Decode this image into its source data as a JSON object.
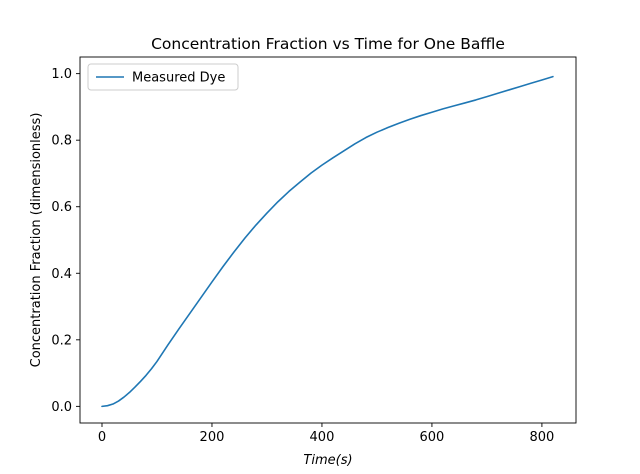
{
  "chart_data": {
    "type": "line",
    "title": "Concentration Fraction vs Time for One Baffle",
    "xlabel": "Time(s)",
    "ylabel": "Concentration Fraction (dimensionless)",
    "xlim": [
      -40,
      862
    ],
    "ylim": [
      -0.05,
      1.05
    ],
    "xticks": [
      0,
      200,
      400,
      600,
      800
    ],
    "yticks": [
      0.0,
      0.2,
      0.4,
      0.6,
      0.8,
      1.0
    ],
    "xtick_labels": [
      "0",
      "200",
      "400",
      "600",
      "800"
    ],
    "ytick_labels": [
      "0.0",
      "0.2",
      "0.4",
      "0.6",
      "0.8",
      "1.0"
    ],
    "grid": false,
    "legend_position": "upper left",
    "series": [
      {
        "name": "Measured Dye",
        "color": "#1f77b4",
        "x": [
          0,
          10,
          20,
          30,
          40,
          50,
          60,
          70,
          80,
          90,
          100,
          120,
          140,
          160,
          180,
          200,
          220,
          240,
          260,
          280,
          300,
          320,
          340,
          360,
          380,
          400,
          420,
          440,
          460,
          480,
          500,
          520,
          540,
          560,
          580,
          600,
          620,
          640,
          660,
          680,
          700,
          720,
          740,
          760,
          780,
          800,
          820
        ],
        "y": [
          0.0,
          0.002,
          0.007,
          0.016,
          0.028,
          0.042,
          0.058,
          0.075,
          0.093,
          0.113,
          0.135,
          0.185,
          0.233,
          0.28,
          0.327,
          0.374,
          0.42,
          0.464,
          0.506,
          0.545,
          0.581,
          0.615,
          0.646,
          0.674,
          0.701,
          0.725,
          0.747,
          0.768,
          0.789,
          0.808,
          0.824,
          0.838,
          0.851,
          0.863,
          0.874,
          0.884,
          0.894,
          0.903,
          0.912,
          0.921,
          0.931,
          0.941,
          0.951,
          0.961,
          0.971,
          0.981,
          0.991
        ]
      }
    ]
  }
}
